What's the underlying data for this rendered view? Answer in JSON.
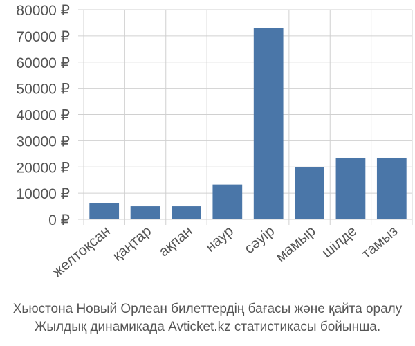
{
  "chart_data": {
    "type": "bar",
    "categories": [
      "желтоқсан",
      "қаңтар",
      "ақпан",
      "наур",
      "сәуір",
      "мамыр",
      "шілде",
      "тамыз"
    ],
    "values": [
      6300,
      5000,
      5000,
      13300,
      73000,
      19800,
      23500,
      23500
    ],
    "ylim": [
      0,
      80000
    ],
    "yticks": [
      0,
      10000,
      20000,
      30000,
      40000,
      50000,
      60000,
      70000,
      80000
    ],
    "ytick_labels": [
      "0 ₽",
      "10000 ₽",
      "20000 ₽",
      "30000 ₽",
      "40000 ₽",
      "50000 ₽",
      "60000 ₽",
      "70000 ₽",
      "80000 ₽"
    ],
    "grid": true,
    "bar_color": "#4a76a8",
    "grid_color": "#d0d0d0"
  },
  "caption": {
    "line1": "Хьюстона Новый Орлеан билеттердің бағасы және қайта оралу",
    "line2": "Жылдық динамикада Avticket.kz статистикасы бойынша."
  }
}
